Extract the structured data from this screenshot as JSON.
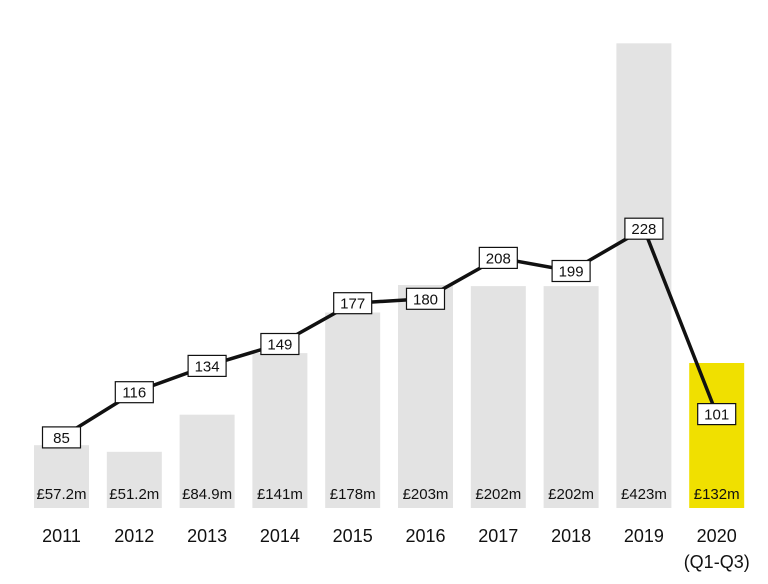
{
  "chart_data": {
    "type": "bar",
    "categories": [
      [
        "2011"
      ],
      [
        "2012"
      ],
      [
        "2013"
      ],
      [
        "2014"
      ],
      [
        "2015"
      ],
      [
        "2016"
      ],
      [
        "2017"
      ],
      [
        "2018"
      ],
      [
        "2019"
      ],
      [
        "2020",
        "(Q1-Q3)"
      ]
    ],
    "series": [
      {
        "type": "bar",
        "values": [
          57.2,
          51.2,
          84.9,
          141,
          178,
          203,
          202,
          202,
          423,
          132
        ],
        "value_labels": [
          "£57.2m",
          "£51.2m",
          "£84.9m",
          "£141m",
          "£178m",
          "£203m",
          "£202m",
          "£202m",
          "£423m",
          "£132m"
        ],
        "color": "#e3e3e3",
        "highlight_color": "#f0e000",
        "highlight_index": 9
      },
      {
        "type": "line",
        "values": [
          85,
          116,
          134,
          149,
          177,
          180,
          208,
          199,
          228,
          101
        ],
        "value_labels": [
          "85",
          "116",
          "134",
          "149",
          "177",
          "180",
          "208",
          "199",
          "228",
          "101"
        ],
        "color": "#111111"
      }
    ],
    "bar_ylim": [
      0,
      470
    ],
    "line_ylim": [
      0,
      300
    ],
    "grid": false,
    "legend": "none",
    "title": "",
    "xlabel": "",
    "ylabel": ""
  }
}
